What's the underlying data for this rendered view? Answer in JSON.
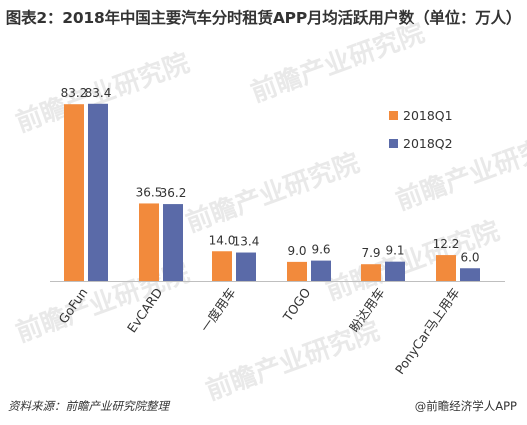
{
  "title": "图表2：2018年中国主要汽车分时租赁APP月均活跃用户数（单位：万人）",
  "footer": {
    "source": "资料来源：前瞻产业研究院整理",
    "brand": "@前瞻经济学人APP"
  },
  "watermark": "前瞻产业研究院",
  "colors": {
    "series1": "#f28a3c",
    "series2": "#5a6aa8",
    "axis": "#bfbfbf",
    "text": "#333333"
  },
  "chart_data": {
    "type": "bar",
    "title": "图表2：2018年中国主要汽车分时租赁APP月均活跃用户数（单位：万人）",
    "xlabel": "",
    "ylabel": "",
    "ylim": [
      0,
      85
    ],
    "grid": false,
    "legend": "right",
    "categories": [
      "GoFun",
      "EvCARD",
      "一度用车",
      "TOGO",
      "盼达用车",
      "PonyCar马上用车"
    ],
    "series": [
      {
        "name": "2018Q1",
        "values": [
          83.2,
          36.5,
          14.0,
          9.0,
          7.9,
          12.2
        ]
      },
      {
        "name": "2018Q2",
        "values": [
          83.4,
          36.2,
          13.4,
          9.6,
          9.1,
          6.0
        ]
      }
    ]
  }
}
